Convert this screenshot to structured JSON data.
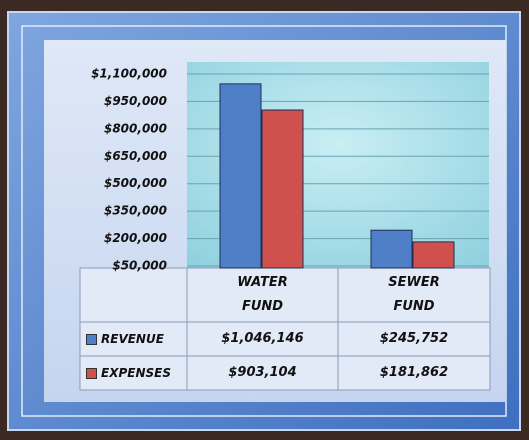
{
  "chart_data": {
    "type": "bar",
    "categories": [
      "WATER FUND",
      "SEWER FUND"
    ],
    "series": [
      {
        "name": "REVENUE",
        "color": "#4f7fc6",
        "values": [
          1046146,
          245752
        ],
        "value_labels": [
          "$1,046,146",
          "$245,752"
        ]
      },
      {
        "name": "EXPENSES",
        "color": "#d0504e",
        "values": [
          903104,
          181862
        ],
        "value_labels": [
          "$903,104",
          "$181,862"
        ]
      }
    ],
    "ylim": [
      50000,
      1100000
    ],
    "yticks": [
      {
        "value": 50000,
        "label": "$50,000"
      },
      {
        "value": 200000,
        "label": "$200,000"
      },
      {
        "value": 350000,
        "label": "$350,000"
      },
      {
        "value": 500000,
        "label": "$500,000"
      },
      {
        "value": 650000,
        "label": "$650,000"
      },
      {
        "value": 800000,
        "label": "$800,000"
      },
      {
        "value": 950000,
        "label": "$950,000"
      },
      {
        "value": 1100000,
        "label": "$1,100,000"
      }
    ],
    "grid": true
  }
}
